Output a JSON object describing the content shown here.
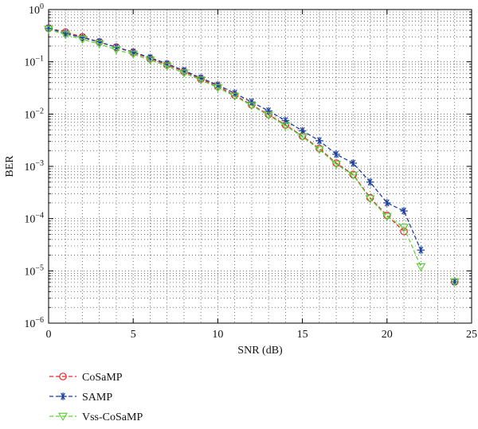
{
  "chart_data": {
    "type": "line",
    "xlabel": "SNR (dB)",
    "ylabel": "BER",
    "xlim": [
      0,
      25
    ],
    "ylim": [
      1e-06,
      1
    ],
    "yscale": "log",
    "grid": true,
    "legend_position": "below",
    "x_ticks": [
      {
        "value": 0,
        "label": "0"
      },
      {
        "value": 5,
        "label": "5"
      },
      {
        "value": 10,
        "label": "10"
      },
      {
        "value": 15,
        "label": "15"
      },
      {
        "value": 20,
        "label": "20"
      },
      {
        "value": 25,
        "label": "25"
      }
    ],
    "y_ticks": [
      {
        "value": 1e-06,
        "base": "10",
        "exp": "−6"
      },
      {
        "value": 1e-05,
        "base": "10",
        "exp": "−5"
      },
      {
        "value": 0.0001,
        "base": "10",
        "exp": "−4"
      },
      {
        "value": 0.001,
        "base": "10",
        "exp": "−3"
      },
      {
        "value": 0.01,
        "base": "10",
        "exp": "−2"
      },
      {
        "value": 0.1,
        "base": "10",
        "exp": "−1"
      },
      {
        "value": 1,
        "base": "10",
        "exp": "0"
      }
    ],
    "series": [
      {
        "name": "CoSaMP",
        "color": "#e8262a",
        "marker": "circle",
        "x": [
          0,
          1,
          2,
          3,
          4,
          5,
          6,
          7,
          8,
          9,
          10,
          11,
          12,
          13,
          14,
          15,
          16,
          17,
          18,
          19,
          20,
          21,
          24
        ],
        "y": [
          0.44,
          0.37,
          0.3,
          0.24,
          0.19,
          0.15,
          0.115,
          0.088,
          0.065,
          0.047,
          0.034,
          0.023,
          0.015,
          0.0098,
          0.0062,
          0.0038,
          0.0022,
          0.00115,
          0.0007,
          0.00025,
          0.000115,
          5.7e-05,
          6.2e-06
        ]
      },
      {
        "name": "SAMP",
        "color": "#1c3f9e",
        "marker": "star",
        "x": [
          0,
          1,
          2,
          3,
          4,
          5,
          6,
          7,
          8,
          9,
          10,
          11,
          12,
          13,
          14,
          15,
          16,
          17,
          18,
          19,
          20,
          21,
          22,
          24
        ],
        "y": [
          0.44,
          0.35,
          0.29,
          0.24,
          0.19,
          0.155,
          0.12,
          0.092,
          0.068,
          0.049,
          0.036,
          0.025,
          0.017,
          0.0115,
          0.0075,
          0.0048,
          0.0031,
          0.0017,
          0.00115,
          0.0005,
          0.0002,
          0.00014,
          2.5e-05,
          6.2e-06
        ]
      },
      {
        "name": "Vss-CoSaMP",
        "color": "#5fcf3d",
        "marker": "triangle-down",
        "x": [
          0,
          1,
          2,
          3,
          4,
          5,
          6,
          7,
          8,
          9,
          10,
          11,
          12,
          13,
          14,
          15,
          16,
          17,
          18,
          19,
          20,
          21,
          22,
          24
        ],
        "y": [
          0.42,
          0.33,
          0.27,
          0.22,
          0.17,
          0.14,
          0.108,
          0.083,
          0.061,
          0.045,
          0.032,
          0.022,
          0.0145,
          0.0095,
          0.006,
          0.0037,
          0.0021,
          0.0011,
          0.00068,
          0.00024,
          0.00011,
          6.8e-05,
          1.2e-05,
          6.2e-06
        ]
      }
    ]
  }
}
